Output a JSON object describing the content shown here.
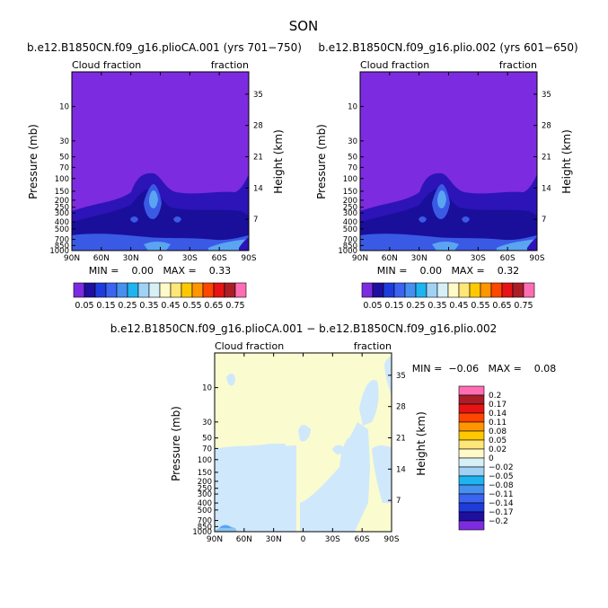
{
  "page_title": "SON",
  "colors": {
    "panel_bg": "#7d2be0",
    "level1": "#2c14b8",
    "level2": "#1a0f9a",
    "level3": "#3a5ae6",
    "level4": "#5aa4f2",
    "diff_bg": "#fbfbd0",
    "diff_light_blue": "#cfe8fb",
    "diff_mid_blue": "#8cc4f0"
  },
  "chart_data": [
    {
      "type": "heatmap",
      "title": "b.e12.B1850CN.f09_g16.plioCA.001 (yrs 701−750)",
      "left_label": "Cloud fraction",
      "right_label": "fraction",
      "ylabel": "Pressure (mb)",
      "y2label": "Height (km)",
      "x_ticks": [
        "90N",
        "60N",
        "30N",
        "0",
        "30S",
        "60S",
        "90S"
      ],
      "y_ticks": [
        "10",
        "30",
        "50",
        "70",
        "100",
        "150",
        "200",
        "250",
        "300",
        "400",
        "500",
        "700",
        "850",
        "1000"
      ],
      "y2_ticks": [
        "35",
        "28",
        "21",
        "14",
        "7"
      ],
      "stats": "MIN =    0.00   MAX =    0.33",
      "min": 0.0,
      "max": 0.33
    },
    {
      "type": "heatmap",
      "title": "b.e12.B1850CN.f09_g16.plio.002 (yrs 601−650)",
      "left_label": "Cloud fraction",
      "right_label": "fraction",
      "ylabel": "Pressure (mb)",
      "y2label": "Height (km)",
      "x_ticks": [
        "90N",
        "60N",
        "30N",
        "0",
        "30S",
        "60S",
        "90S"
      ],
      "y_ticks": [
        "10",
        "30",
        "50",
        "70",
        "100",
        "150",
        "200",
        "250",
        "300",
        "400",
        "500",
        "700",
        "850",
        "1000"
      ],
      "y2_ticks": [
        "35",
        "28",
        "21",
        "14",
        "7"
      ],
      "stats": "MIN =    0.00   MAX =    0.32",
      "min": 0.0,
      "max": 0.32
    },
    {
      "type": "heatmap",
      "title": "b.e12.B1850CN.f09_g16.plioCA.001 − b.e12.B1850CN.f09_g16.plio.002",
      "left_label": "Cloud fraction",
      "right_label": "fraction",
      "ylabel": "Pressure (mb)",
      "y2label": "Height (km)",
      "x_ticks": [
        "90N",
        "60N",
        "30N",
        "0",
        "30S",
        "60S",
        "90S"
      ],
      "y_ticks": [
        "10",
        "30",
        "50",
        "70",
        "100",
        "150",
        "200",
        "250",
        "300",
        "400",
        "500",
        "700",
        "850",
        "1000"
      ],
      "y2_ticks": [
        "35",
        "28",
        "21",
        "14",
        "7"
      ],
      "stats": "MIN =  −0.06   MAX =    0.08",
      "min": -0.06,
      "max": 0.08
    }
  ],
  "colorbar_top": {
    "labels": [
      "0.05",
      "0.15",
      "0.25",
      "0.35",
      "0.45",
      "0.55",
      "0.65",
      "0.75"
    ],
    "colors": [
      "#7d2be0",
      "#1e0fa0",
      "#1e3cdc",
      "#3c64f0",
      "#4690f0",
      "#1eb4f0",
      "#a0d2f5",
      "#d7f0f5",
      "#fffac8",
      "#ffe678",
      "#ffc800",
      "#ff9600",
      "#ff4600",
      "#e61414",
      "#aa1e28",
      "#ff6eb4"
    ]
  },
  "colorbar_diff": {
    "labels": [
      "0.2",
      "0.17",
      "0.14",
      "0.11",
      "0.08",
      "0.05",
      "0.02",
      "0",
      "−0.02",
      "−0.05",
      "−0.08",
      "−0.11",
      "−0.14",
      "−0.17",
      "−0.2"
    ],
    "colors": [
      "#ff6eb4",
      "#aa1e28",
      "#e61414",
      "#ff4600",
      "#ff9600",
      "#ffc800",
      "#ffe678",
      "#fffac8",
      "#d7f0f5",
      "#a0d2f5",
      "#1eb4f0",
      "#4690f0",
      "#3c64f0",
      "#1e3cdc",
      "#1e0fa0",
      "#7d2be0"
    ]
  }
}
